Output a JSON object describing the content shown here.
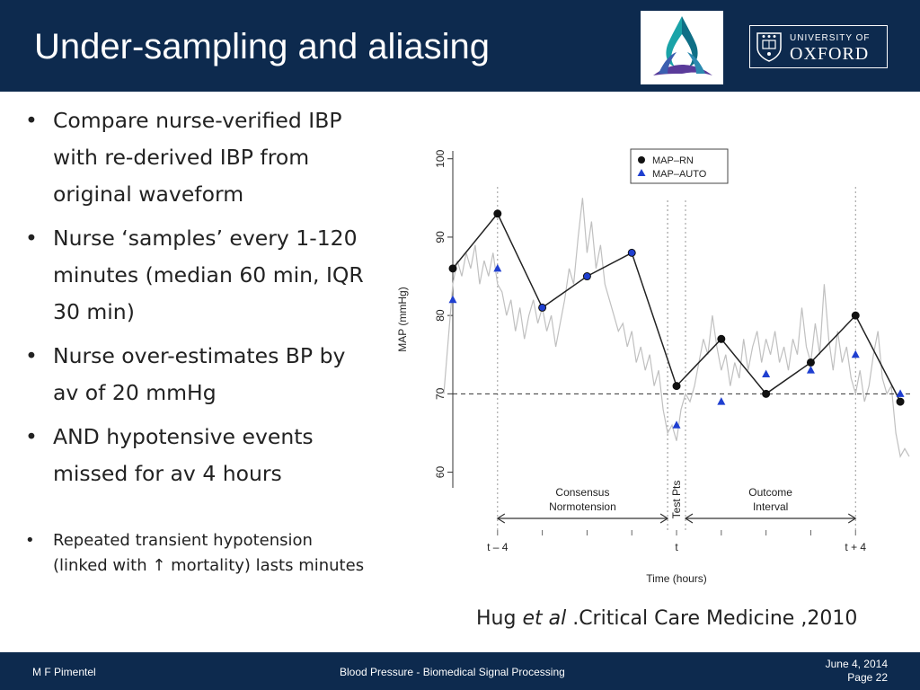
{
  "header": {
    "title": "Under-sampling and aliasing",
    "oxford_line1": "UNIVERSITY OF",
    "oxford_line2": "OXFORD",
    "bg_color": "#0d2a4e"
  },
  "bullets": [
    {
      "text": "Compare nurse-verified IBP with re-derived IBP from original waveform"
    },
    {
      "text": "Nurse ‘samples’ every 1-120 minutes (median 60 min, IQR 30 min)"
    },
    {
      "text": "Nurse over-estimates BP by av of 20 mmHg"
    },
    {
      "text": "AND hypotensive events missed for av 4 hours"
    },
    {
      "text": "Repeated transient hypotension (linked with ↑ mortality) lasts minutes"
    }
  ],
  "citation": {
    "author": "Hug ",
    "etal": "et al",
    "rest": " .Critical Care Medicine ,2010"
  },
  "chart_data": {
    "type": "line",
    "xlabel": "Time (hours)",
    "ylabel": "MAP (mmHg)",
    "xlim": [
      -5,
      5.3
    ],
    "ylim": [
      58,
      101
    ],
    "yticks": [
      60,
      70,
      80,
      90,
      100
    ],
    "xtick_labels": [
      {
        "x": -4,
        "label": "t – 4"
      },
      {
        "x": 0,
        "label": "t"
      },
      {
        "x": 4,
        "label": "t + 4"
      }
    ],
    "threshold": 70,
    "phases": [
      {
        "label_line1": "Consensus",
        "label_line2": "Normotension",
        "start": -4,
        "end": -0.2
      },
      {
        "label_line1": "Test Pts",
        "label_line2": "",
        "start": -0.2,
        "end": 0.2
      },
      {
        "label_line1": "Outcome",
        "label_line2": "Interval",
        "start": 0.2,
        "end": 4
      }
    ],
    "series": [
      {
        "name": "MAP–RN",
        "marker": "circle",
        "color": "#111111",
        "x": [
          -5,
          -4,
          -3,
          -2,
          -1,
          0,
          1,
          2,
          3,
          4,
          5
        ],
        "y": [
          86,
          93,
          81,
          85,
          88,
          71,
          77,
          70,
          74,
          80,
          69
        ]
      },
      {
        "name": "MAP–AUTO",
        "marker": "triangle",
        "color": "#1f3fd0",
        "x": [
          -5,
          -4,
          -3,
          -2,
          -1,
          0,
          1,
          2,
          3,
          4,
          5
        ],
        "y": [
          82,
          86,
          81,
          85,
          88,
          66,
          69,
          72.5,
          73,
          75,
          70
        ]
      }
    ],
    "waveform": {
      "color": "#c0c0c0",
      "x": [
        -5.2,
        -5.0,
        -4.9,
        -4.8,
        -4.7,
        -4.6,
        -4.5,
        -4.4,
        -4.3,
        -4.2,
        -4.1,
        -4.0,
        -3.9,
        -3.8,
        -3.7,
        -3.6,
        -3.5,
        -3.4,
        -3.3,
        -3.2,
        -3.1,
        -3.0,
        -2.9,
        -2.8,
        -2.7,
        -2.6,
        -2.5,
        -2.4,
        -2.3,
        -2.2,
        -2.1,
        -2.0,
        -1.9,
        -1.8,
        -1.7,
        -1.6,
        -1.5,
        -1.4,
        -1.3,
        -1.2,
        -1.1,
        -1.0,
        -0.9,
        -0.8,
        -0.7,
        -0.6,
        -0.5,
        -0.4,
        -0.3,
        -0.2,
        -0.1,
        0.0,
        0.1,
        0.2,
        0.3,
        0.4,
        0.5,
        0.6,
        0.7,
        0.8,
        0.9,
        1.0,
        1.1,
        1.2,
        1.3,
        1.4,
        1.5,
        1.6,
        1.7,
        1.8,
        1.9,
        2.0,
        2.1,
        2.2,
        2.3,
        2.4,
        2.5,
        2.6,
        2.7,
        2.8,
        2.9,
        3.0,
        3.1,
        3.2,
        3.3,
        3.4,
        3.5,
        3.6,
        3.7,
        3.8,
        3.9,
        4.0,
        4.1,
        4.2,
        4.3,
        4.4,
        4.5,
        4.6,
        4.7,
        4.8,
        4.9,
        5.0,
        5.1,
        5.2
      ],
      "y": [
        70,
        84,
        87,
        85,
        88,
        86,
        89,
        84,
        87,
        85,
        88,
        84,
        83,
        80,
        82,
        78,
        81,
        77,
        80,
        82,
        79,
        81,
        78,
        80,
        76,
        79,
        82,
        86,
        84,
        90,
        95,
        88,
        92,
        86,
        89,
        84,
        82,
        80,
        78,
        79,
        76,
        78,
        74,
        76,
        73,
        75,
        71,
        73,
        68,
        65,
        66,
        64,
        68,
        70,
        69,
        71,
        74,
        77,
        75,
        80,
        76,
        73,
        75,
        71,
        74,
        72,
        77,
        73,
        76,
        78,
        74,
        77,
        75,
        78,
        74,
        76,
        73,
        77,
        75,
        81,
        76,
        74,
        79,
        75,
        84,
        77,
        73,
        78,
        74,
        76,
        72,
        70,
        73,
        69,
        71,
        75,
        78,
        72,
        70,
        71,
        65,
        62,
        63,
        62
      ]
    }
  },
  "footer": {
    "author": "M F Pimentel",
    "course": "Blood Pressure - Biomedical Signal Processing",
    "date": "June 4, 2014",
    "page": "Page 22"
  }
}
